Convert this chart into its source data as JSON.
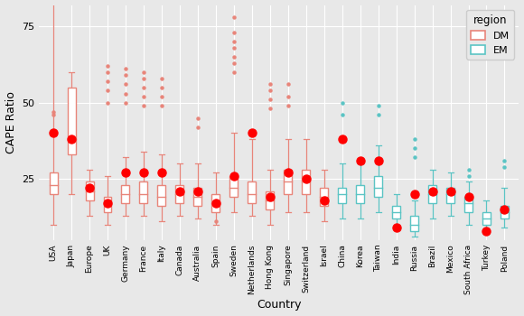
{
  "countries": [
    "USA",
    "Japan",
    "Europe",
    "UK",
    "Germany",
    "France",
    "Italy",
    "Canada",
    "Australia",
    "Spain",
    "Sweden",
    "Netherlands",
    "Hong Kong",
    "Singapore",
    "Switzerland",
    "Israel",
    "China",
    "Korea",
    "Taiwan",
    "India",
    "Russia",
    "Brazil",
    "Mexico",
    "South Africa",
    "Turkey",
    "Poland"
  ],
  "region": [
    "DM",
    "DM",
    "DM",
    "DM",
    "DM",
    "DM",
    "DM",
    "DM",
    "DM",
    "DM",
    "DM",
    "DM",
    "DM",
    "DM",
    "DM",
    "DM",
    "EM",
    "EM",
    "EM",
    "EM",
    "EM",
    "EM",
    "EM",
    "EM",
    "EM",
    "EM"
  ],
  "dm_color": "#E8857A",
  "em_color": "#5BC4C4",
  "dot_color": "#FF0000",
  "bg_color": "#E8E8E8",
  "grid_color": "#FFFFFF",
  "ylabel": "CAPE Ratio",
  "xlabel": "Country",
  "legend_title": "region",
  "boxes": {
    "USA": {
      "q1": 20,
      "med": 23,
      "q3": 27,
      "whislo": 10,
      "whishi": 95,
      "fliers_high": [
        46,
        47
      ],
      "fliers_low": [],
      "dot": 40
    },
    "Japan": {
      "q1": 33,
      "med": 38,
      "q3": 55,
      "whislo": 20,
      "whishi": 60,
      "fliers_high": [],
      "fliers_low": [],
      "dot": 38
    },
    "Europe": {
      "q1": 18,
      "med": 21,
      "q3": 24,
      "whislo": 13,
      "whishi": 28,
      "fliers_high": [],
      "fliers_low": [],
      "dot": 22
    },
    "UK": {
      "q1": 14,
      "med": 17,
      "q3": 19,
      "whislo": 10,
      "whishi": 26,
      "fliers_high": [
        50,
        54,
        57,
        60,
        62
      ],
      "fliers_low": [],
      "dot": 17
    },
    "Germany": {
      "q1": 17,
      "med": 20,
      "q3": 23,
      "whislo": 13,
      "whishi": 32,
      "fliers_high": [
        50,
        53,
        56,
        59,
        61
      ],
      "fliers_low": [],
      "dot": 27
    },
    "France": {
      "q1": 17,
      "med": 20,
      "q3": 24,
      "whislo": 13,
      "whishi": 34,
      "fliers_high": [
        49,
        52,
        55,
        58,
        60
      ],
      "fliers_low": [],
      "dot": 27
    },
    "Italy": {
      "q1": 16,
      "med": 19,
      "q3": 23,
      "whislo": 11,
      "whishi": 33,
      "fliers_high": [
        49,
        52,
        55,
        58
      ],
      "fliers_low": [],
      "dot": 27
    },
    "Canada": {
      "q1": 17,
      "med": 20,
      "q3": 23,
      "whislo": 13,
      "whishi": 30,
      "fliers_high": [],
      "fliers_low": [],
      "dot": 21
    },
    "Australia": {
      "q1": 16,
      "med": 19,
      "q3": 22,
      "whislo": 12,
      "whishi": 30,
      "fliers_high": [
        42,
        45
      ],
      "fliers_low": [],
      "dot": 21
    },
    "Spain": {
      "q1": 14,
      "med": 17,
      "q3": 20,
      "whislo": 10,
      "whishi": 27,
      "fliers_high": [],
      "fliers_low": [
        11
      ],
      "dot": 17
    },
    "Sweden": {
      "q1": 19,
      "med": 22,
      "q3": 26,
      "whislo": 14,
      "whishi": 40,
      "fliers_high": [
        60,
        63,
        65,
        68,
        70,
        73,
        78
      ],
      "fliers_low": [],
      "dot": 26
    },
    "Netherlands": {
      "q1": 17,
      "med": 20,
      "q3": 24,
      "whislo": 13,
      "whishi": 38,
      "fliers_high": [],
      "fliers_low": [],
      "dot": 40
    },
    "Hong Kong": {
      "q1": 15,
      "med": 18,
      "q3": 21,
      "whislo": 10,
      "whishi": 28,
      "fliers_high": [
        48,
        51,
        54,
        56
      ],
      "fliers_low": [],
      "dot": 19
    },
    "Singapore": {
      "q1": 20,
      "med": 24,
      "q3": 28,
      "whislo": 14,
      "whishi": 38,
      "fliers_high": [
        49,
        52,
        56
      ],
      "fliers_low": [],
      "dot": 27
    },
    "Switzerland": {
      "q1": 20,
      "med": 24,
      "q3": 28,
      "whislo": 14,
      "whishi": 38,
      "fliers_high": [],
      "fliers_low": [],
      "dot": 25
    },
    "Israel": {
      "q1": 16,
      "med": 19,
      "q3": 22,
      "whislo": 11,
      "whishi": 28,
      "fliers_high": [],
      "fliers_low": [],
      "dot": 18
    },
    "China": {
      "q1": 17,
      "med": 20,
      "q3": 22,
      "whislo": 12,
      "whishi": 30,
      "fliers_high": [
        46,
        50
      ],
      "fliers_low": [],
      "dot": 38
    },
    "Korea": {
      "q1": 17,
      "med": 20,
      "q3": 23,
      "whislo": 12,
      "whishi": 30,
      "fliers_high": [],
      "fliers_low": [],
      "dot": 31
    },
    "Taiwan": {
      "q1": 19,
      "med": 22,
      "q3": 26,
      "whislo": 14,
      "whishi": 36,
      "fliers_high": [
        46,
        49
      ],
      "fliers_low": [],
      "dot": 31
    },
    "India": {
      "q1": 12,
      "med": 14,
      "q3": 16,
      "whislo": 9,
      "whishi": 20,
      "fliers_high": [],
      "fliers_low": [],
      "dot": 9
    },
    "Russia": {
      "q1": 8,
      "med": 10,
      "q3": 13,
      "whislo": 6,
      "whishi": 18,
      "fliers_high": [
        32,
        35,
        38
      ],
      "fliers_low": [],
      "dot": 20
    },
    "Brazil": {
      "q1": 17,
      "med": 20,
      "q3": 23,
      "whislo": 12,
      "whishi": 28,
      "fliers_high": [],
      "fliers_low": [],
      "dot": 21
    },
    "Mexico": {
      "q1": 17,
      "med": 20,
      "q3": 22,
      "whislo": 13,
      "whishi": 27,
      "fliers_high": [],
      "fliers_low": [],
      "dot": 21
    },
    "South Africa": {
      "q1": 14,
      "med": 17,
      "q3": 19,
      "whislo": 10,
      "whishi": 24,
      "fliers_high": [
        26,
        28
      ],
      "fliers_low": [],
      "dot": 19
    },
    "Turkey": {
      "q1": 10,
      "med": 12,
      "q3": 14,
      "whislo": 8,
      "whishi": 18,
      "fliers_high": [],
      "fliers_low": [],
      "dot": 8
    },
    "Poland": {
      "q1": 12,
      "med": 14,
      "q3": 16,
      "whislo": 9,
      "whishi": 22,
      "fliers_high": [
        29,
        31
      ],
      "fliers_low": [],
      "dot": 15
    }
  },
  "ylim": [
    5,
    82
  ],
  "yticks": [
    25,
    50,
    75
  ]
}
